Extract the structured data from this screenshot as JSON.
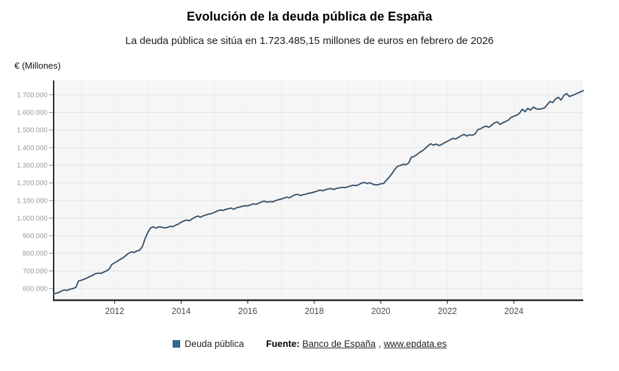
{
  "header": {
    "unit_label": "€ (Millones)"
  },
  "footer": {
    "legend_label": "Deuda pública",
    "legend_swatch_color": "#31688f",
    "source_label": "Fuente:",
    "source_link": "Banco de España",
    "separator": ",",
    "site_link": "www.epdata.es"
  },
  "chart_data": {
    "type": "line",
    "title": "Evolución de la deuda pública de España",
    "subtitle": "La deuda pública se sitúa en 1.723.485,15 millones de euros en febrero de 2026",
    "ylabel": "€ (Millones)",
    "xlabel": "",
    "legend_position": "bottom",
    "grid": "on",
    "x_monthly_start": "2010-03",
    "x_monthly_end": "2026-02",
    "xlim": [
      2010.1667,
      2026.0833
    ],
    "ylim": [
      533700,
      1781700
    ],
    "x_ticks": [
      2012,
      2014,
      2016,
      2018,
      2020,
      2022,
      2024
    ],
    "y_ticks": [
      {
        "value": 600000,
        "label": "600.000"
      },
      {
        "value": 700000,
        "label": "700.000"
      },
      {
        "value": 800000,
        "label": "800.000"
      },
      {
        "value": 900000,
        "label": "900.000"
      },
      {
        "value": 1000000,
        "label": "1.000.000"
      },
      {
        "value": 1100000,
        "label": "1.100.000"
      },
      {
        "value": 1200000,
        "label": "1.200.000"
      },
      {
        "value": 1300000,
        "label": "1.300.000"
      },
      {
        "value": 1400000,
        "label": "1.400.000"
      },
      {
        "value": 1500000,
        "label": "1.500.000"
      },
      {
        "value": 1600000,
        "label": "1.600.000"
      },
      {
        "value": 1700000,
        "label": "1.700.000"
      }
    ],
    "colors": {
      "line": "#3b556e",
      "plot_bg": "#f6f6f6",
      "h_grid": "#e3e1e1",
      "v_grid": "#ededed",
      "axis": "#262626",
      "y_tick_label": "#999999",
      "x_tick_label": "#4a4a4a"
    },
    "series": [
      {
        "name": "Deuda pública",
        "values_monthly": [
          569000,
          574000,
          579000,
          588000,
          592000,
          590000,
          597000,
          600000,
          607000,
          644000,
          647000,
          653000,
          660000,
          668000,
          674000,
          684000,
          688000,
          686000,
          693000,
          700000,
          710000,
          737000,
          746000,
          755000,
          766000,
          774000,
          787000,
          800000,
          808000,
          805000,
          813000,
          818000,
          838000,
          884000,
          920000,
          945000,
          950000,
          943000,
          951000,
          948000,
          944000,
          947000,
          954000,
          951000,
          960000,
          966000,
          977000,
          984000,
          989000,
          985000,
          996000,
          1005000,
          1012000,
          1005000,
          1013000,
          1018000,
          1023000,
          1026000,
          1033000,
          1040000,
          1046000,
          1043000,
          1049000,
          1053000,
          1057000,
          1050000,
          1059000,
          1062000,
          1067000,
          1070000,
          1069000,
          1075000,
          1081000,
          1078000,
          1085000,
          1092000,
          1096000,
          1090000,
          1094000,
          1092000,
          1099000,
          1104000,
          1108000,
          1113000,
          1119000,
          1115000,
          1124000,
          1132000,
          1135000,
          1128000,
          1133000,
          1136000,
          1141000,
          1144000,
          1148000,
          1153000,
          1159000,
          1155000,
          1161000,
          1165000,
          1168000,
          1162000,
          1169000,
          1171000,
          1175000,
          1173000,
          1177000,
          1182000,
          1187000,
          1184000,
          1190000,
          1198000,
          1203000,
          1196000,
          1201000,
          1193000,
          1189000,
          1189000,
          1195000,
          1196000,
          1215000,
          1232000,
          1252000,
          1276000,
          1294000,
          1298000,
          1306000,
          1303000,
          1312000,
          1345000,
          1350000,
          1360000,
          1373000,
          1382000,
          1395000,
          1410000,
          1422000,
          1414000,
          1420000,
          1412000,
          1418000,
          1428000,
          1436000,
          1444000,
          1453000,
          1449000,
          1458000,
          1468000,
          1475000,
          1466000,
          1473000,
          1470000,
          1478000,
          1502000,
          1507000,
          1517000,
          1522000,
          1515000,
          1528000,
          1540000,
          1546000,
          1532000,
          1541000,
          1548000,
          1556000,
          1572000,
          1578000,
          1584000,
          1595000,
          1618000,
          1604000,
          1623000,
          1613000,
          1630000,
          1621000,
          1618000,
          1621000,
          1625000,
          1643000,
          1662000,
          1656000,
          1676000,
          1686000,
          1670000,
          1696000,
          1707000,
          1690000,
          1696000,
          1702000,
          1710000,
          1716000,
          1723485.15
        ]
      }
    ]
  }
}
